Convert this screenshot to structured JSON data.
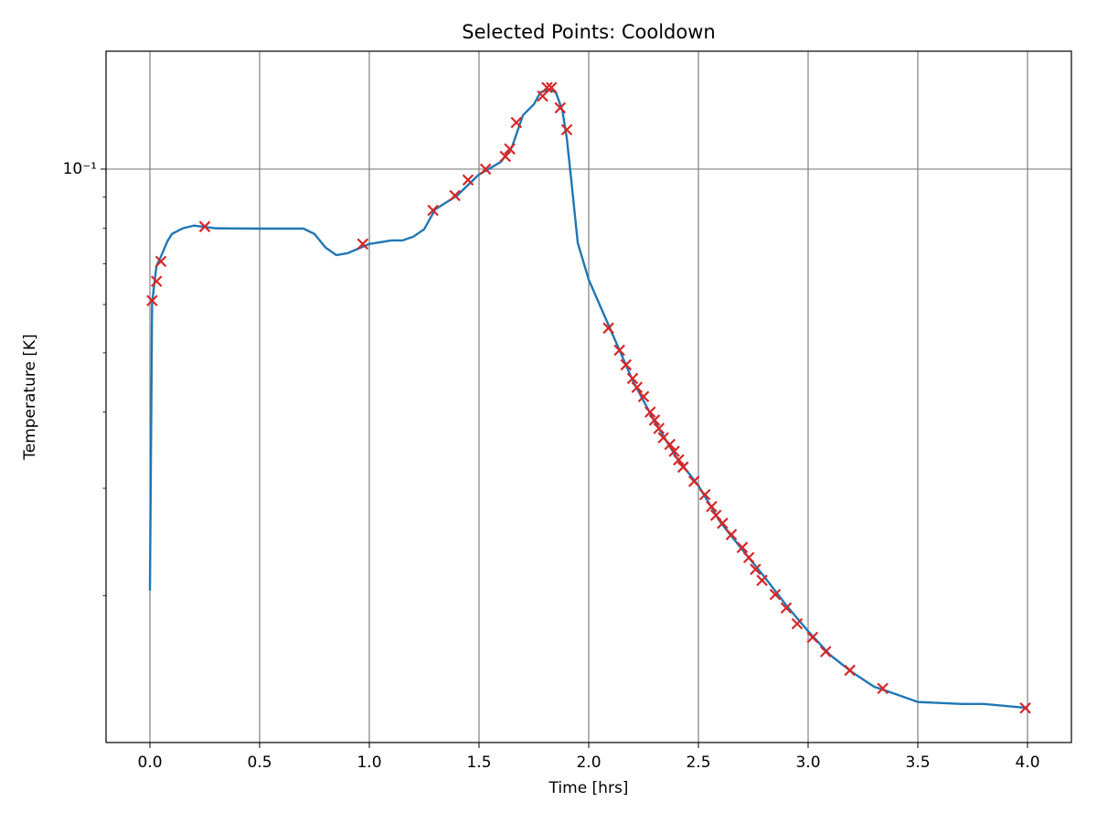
{
  "chart_data": {
    "type": "line",
    "title": "Selected Points: Cooldown",
    "x_label": "Time [hrs]",
    "y_label": "Temperature [K]",
    "xlim": [
      -0.2,
      4.2
    ],
    "ylim": [
      0.0115,
      0.156
    ],
    "yscale": "log",
    "grid": true,
    "xticks": [
      {
        "value": 0,
        "label": "0.0"
      },
      0.5,
      {
        "value": 1,
        "label": "1.0"
      },
      1.5,
      {
        "value": 2,
        "label": "2.0"
      },
      2.5,
      {
        "value": 3,
        "label": "3.0"
      },
      3.5,
      {
        "value": 4,
        "label": "4.0"
      }
    ],
    "yticks": [
      {
        "value": 0.1,
        "label": "10⁻¹"
      }
    ],
    "yminorticks": [
      0.02,
      0.03,
      0.04,
      0.05,
      0.06,
      0.07,
      0.08,
      0.09
    ],
    "series": [
      {
        "type": "line",
        "color": "#1f77b4",
        "x": [
          0,
          0.01,
          0.03,
          0.05,
          0.08,
          0.1,
          0.15,
          0.2,
          0.3,
          0.5,
          0.7,
          0.75,
          0.8,
          0.85,
          0.9,
          1.0,
          1.1,
          1.15,
          1.2,
          1.25,
          1.3,
          1.4,
          1.5,
          1.55,
          1.6,
          1.65,
          1.7,
          1.75,
          1.78,
          1.82,
          1.85,
          1.88,
          1.9,
          1.92,
          1.95,
          2.0,
          2.1,
          2.2,
          2.3,
          2.4,
          2.5,
          2.6,
          2.7,
          2.8,
          2.9,
          3.0,
          3.1,
          3.2,
          3.3,
          3.4,
          3.5,
          3.7,
          3.8,
          4.0
        ],
        "values": [
          0.0204,
          0.0605,
          0.0694,
          0.0719,
          0.0762,
          0.0783,
          0.08,
          0.0808,
          0.08,
          0.0799,
          0.0799,
          0.0783,
          0.0744,
          0.0723,
          0.0728,
          0.0754,
          0.0764,
          0.0764,
          0.0775,
          0.0797,
          0.0859,
          0.0905,
          0.098,
          0.1003,
          0.1028,
          0.1086,
          0.1225,
          0.1277,
          0.1336,
          0.135,
          0.1336,
          0.1247,
          0.1124,
          0.0963,
          0.0757,
          0.0659,
          0.0545,
          0.0451,
          0.0386,
          0.0337,
          0.0303,
          0.0264,
          0.0238,
          0.0215,
          0.0193,
          0.0175,
          0.016,
          0.015,
          0.0142,
          0.0138,
          0.0134,
          0.0133,
          0.0133,
          0.0131
        ]
      },
      {
        "type": "scatter",
        "marker": "x",
        "color": "#d62728",
        "x": [
          0.01,
          0.03,
          0.05,
          0.25,
          0.97,
          1.29,
          1.39,
          1.45,
          1.53,
          1.62,
          1.64,
          1.67,
          1.79,
          1.81,
          1.83,
          1.87,
          1.9,
          2.09,
          2.14,
          2.17,
          2.2,
          2.22,
          2.25,
          2.28,
          2.3,
          2.32,
          2.34,
          2.37,
          2.39,
          2.41,
          2.43,
          2.48,
          2.53,
          2.56,
          2.58,
          2.61,
          2.65,
          2.7,
          2.73,
          2.76,
          2.79,
          2.85,
          2.9,
          2.95,
          3.02,
          3.08,
          3.19,
          3.34,
          3.99
        ],
        "values": [
          0.0609,
          0.0655,
          0.0706,
          0.0805,
          0.0754,
          0.0856,
          0.0905,
          0.096,
          0.1,
          0.1049,
          0.1079,
          0.1192,
          0.1317,
          0.136,
          0.136,
          0.126,
          0.116,
          0.0549,
          0.0505,
          0.0478,
          0.0454,
          0.0439,
          0.0424,
          0.04,
          0.0388,
          0.0376,
          0.0363,
          0.0354,
          0.0345,
          0.0334,
          0.0325,
          0.0308,
          0.0293,
          0.028,
          0.0271,
          0.0263,
          0.0252,
          0.024,
          0.0231,
          0.0221,
          0.0212,
          0.0201,
          0.0191,
          0.018,
          0.0171,
          0.0162,
          0.0151,
          0.0141,
          0.0131
        ]
      }
    ]
  }
}
